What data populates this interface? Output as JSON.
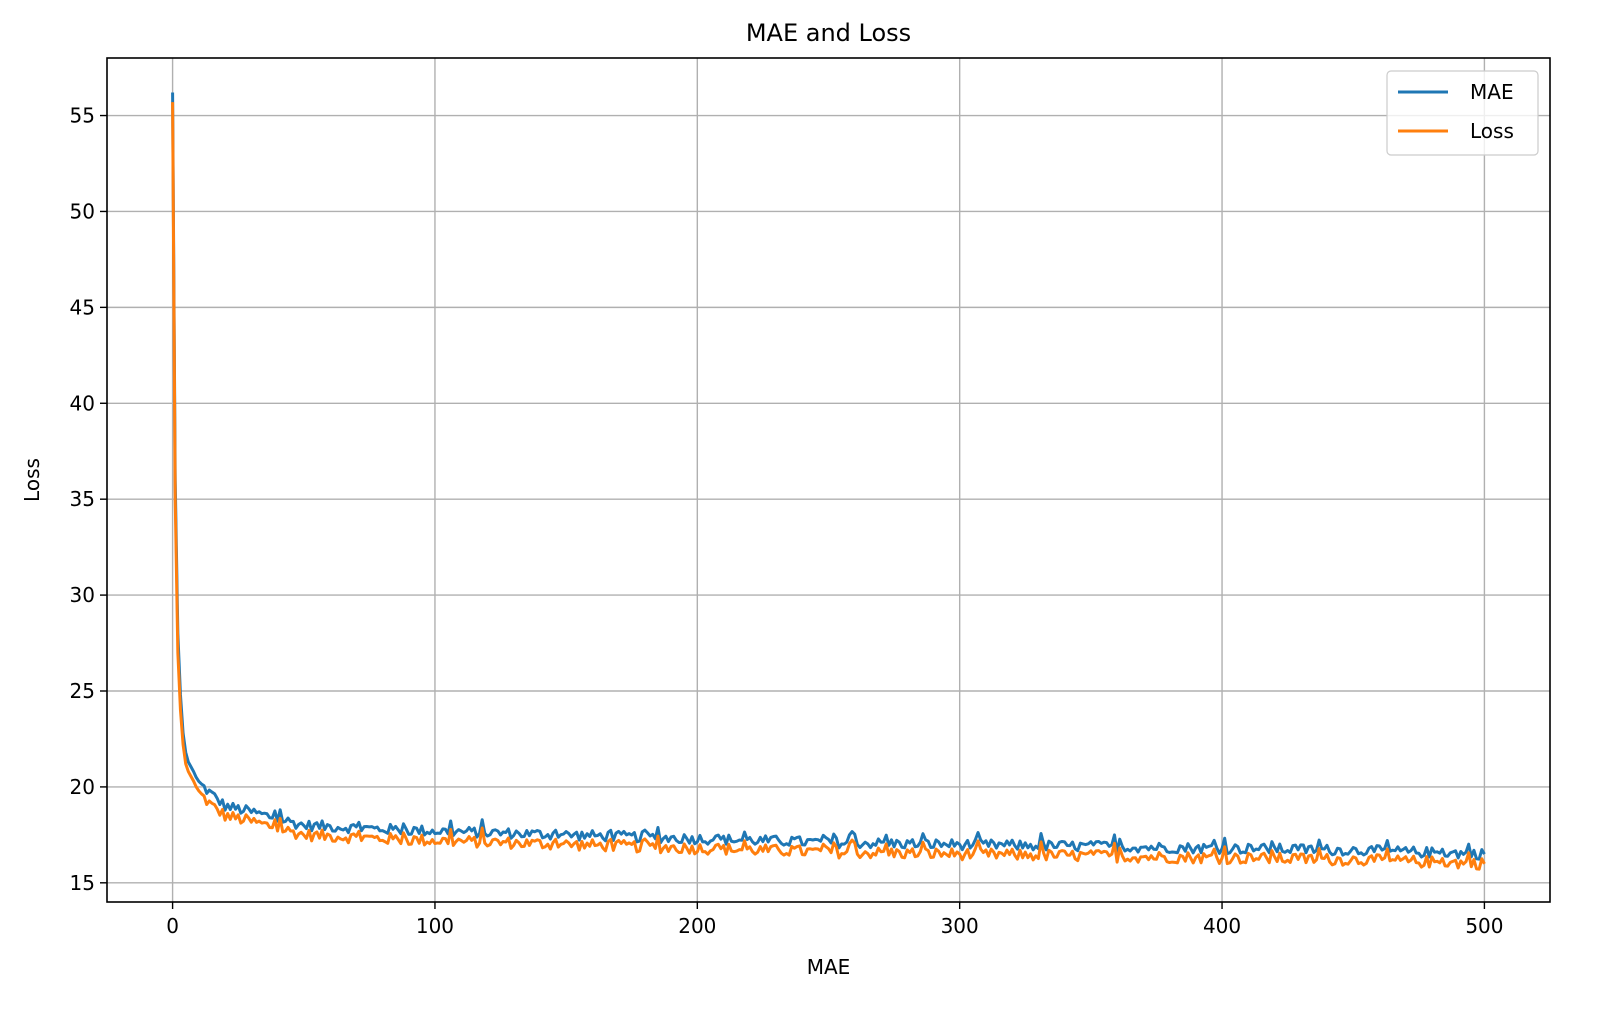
{
  "chart_data": {
    "type": "line",
    "title": "MAE and Loss",
    "xlabel": "MAE",
    "ylabel": "Loss",
    "xlim": [
      -25,
      525
    ],
    "ylim": [
      14,
      58
    ],
    "xticks": [
      0,
      100,
      200,
      300,
      400,
      500
    ],
    "yticks": [
      15,
      20,
      25,
      30,
      35,
      40,
      45,
      50,
      55
    ],
    "grid": true,
    "legend_position": "top-right",
    "series": [
      {
        "name": "MAE",
        "color": "#1f77b4",
        "anchors_x": [
          0,
          1,
          2,
          3,
          4,
          5,
          6,
          8,
          10,
          15,
          20,
          30,
          50,
          80,
          100,
          150,
          200,
          250,
          300,
          350,
          400,
          450,
          500
        ],
        "anchors_y": [
          56.2,
          36.0,
          28.0,
          24.8,
          22.8,
          21.8,
          21.3,
          20.8,
          20.2,
          19.6,
          19.0,
          18.7,
          18.0,
          17.8,
          17.7,
          17.5,
          17.3,
          17.1,
          17.0,
          16.9,
          16.8,
          16.7,
          16.5
        ]
      },
      {
        "name": "Loss",
        "color": "#ff7f0e",
        "anchors_x": [
          0,
          1,
          2,
          3,
          4,
          5,
          6,
          8,
          10,
          15,
          20,
          30,
          50,
          80,
          100,
          150,
          200,
          250,
          300,
          350,
          400,
          450,
          500
        ],
        "anchors_y": [
          55.7,
          35.0,
          27.0,
          24.0,
          22.2,
          21.2,
          20.8,
          20.3,
          19.7,
          19.0,
          18.5,
          18.2,
          17.5,
          17.3,
          17.2,
          17.0,
          16.8,
          16.6,
          16.5,
          16.4,
          16.3,
          16.2,
          16.0
        ]
      }
    ]
  }
}
